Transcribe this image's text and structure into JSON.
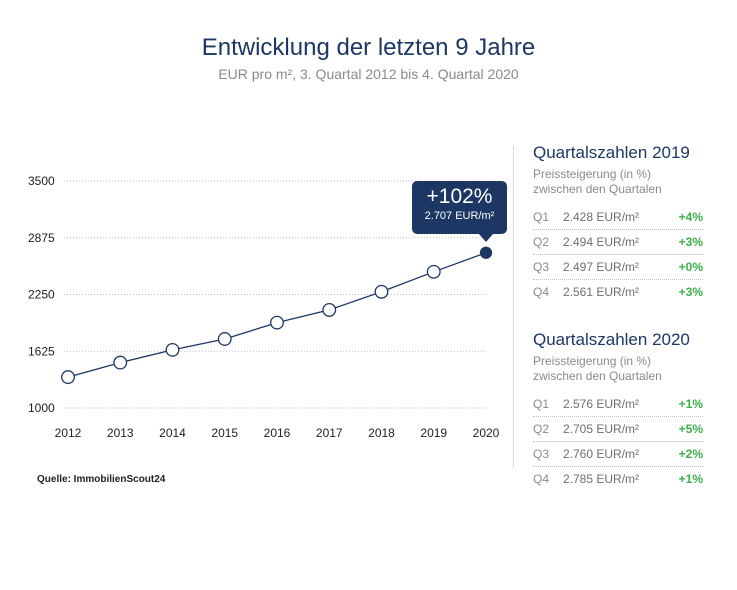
{
  "header": {
    "title": "Entwicklung der letzten 9 Jahre",
    "subtitle": "EUR pro m², 3. Quartal 2012 bis 4. Quartal 2020"
  },
  "source": "Quelle: ImmobilienScout24",
  "callout": {
    "change": "+102%",
    "price": "2.707 EUR/m²"
  },
  "colors": {
    "accent": "#1c3764",
    "positive": "#3cb04a",
    "muted": "#8a8a8a"
  },
  "chart_data": {
    "type": "line",
    "x": [
      "2012",
      "2013",
      "2014",
      "2015",
      "2016",
      "2017",
      "2018",
      "2019",
      "2020"
    ],
    "y": [
      1340,
      1500,
      1640,
      1760,
      1940,
      2080,
      2280,
      2500,
      2710
    ],
    "ylim": [
      1000,
      3500
    ],
    "yticks": [
      1000,
      1625,
      2250,
      2875,
      3500
    ],
    "grid": true,
    "highlight_last": true
  },
  "panels": [
    {
      "title": "Quartalszahlen 2019",
      "desc1": "Preissteigerung (in %)",
      "desc2": "zwischen den Quartalen",
      "rows": [
        {
          "q": "Q1",
          "value": "2.428 EUR/m²",
          "change": "+4%"
        },
        {
          "q": "Q2",
          "value": "2.494 EUR/m²",
          "change": "+3%"
        },
        {
          "q": "Q3",
          "value": "2.497 EUR/m²",
          "change": "+0%"
        },
        {
          "q": "Q4",
          "value": "2.561 EUR/m²",
          "change": "+3%"
        }
      ]
    },
    {
      "title": "Quartalszahlen 2020",
      "desc1": "Preissteigerung (in %)",
      "desc2": "zwischen den Quartalen",
      "rows": [
        {
          "q": "Q1",
          "value": "2.576 EUR/m²",
          "change": "+1%"
        },
        {
          "q": "Q2",
          "value": "2.705 EUR/m²",
          "change": "+5%"
        },
        {
          "q": "Q3",
          "value": "2.760 EUR/m²",
          "change": "+2%"
        },
        {
          "q": "Q4",
          "value": "2.785 EUR/m²",
          "change": "+1%"
        }
      ]
    }
  ]
}
